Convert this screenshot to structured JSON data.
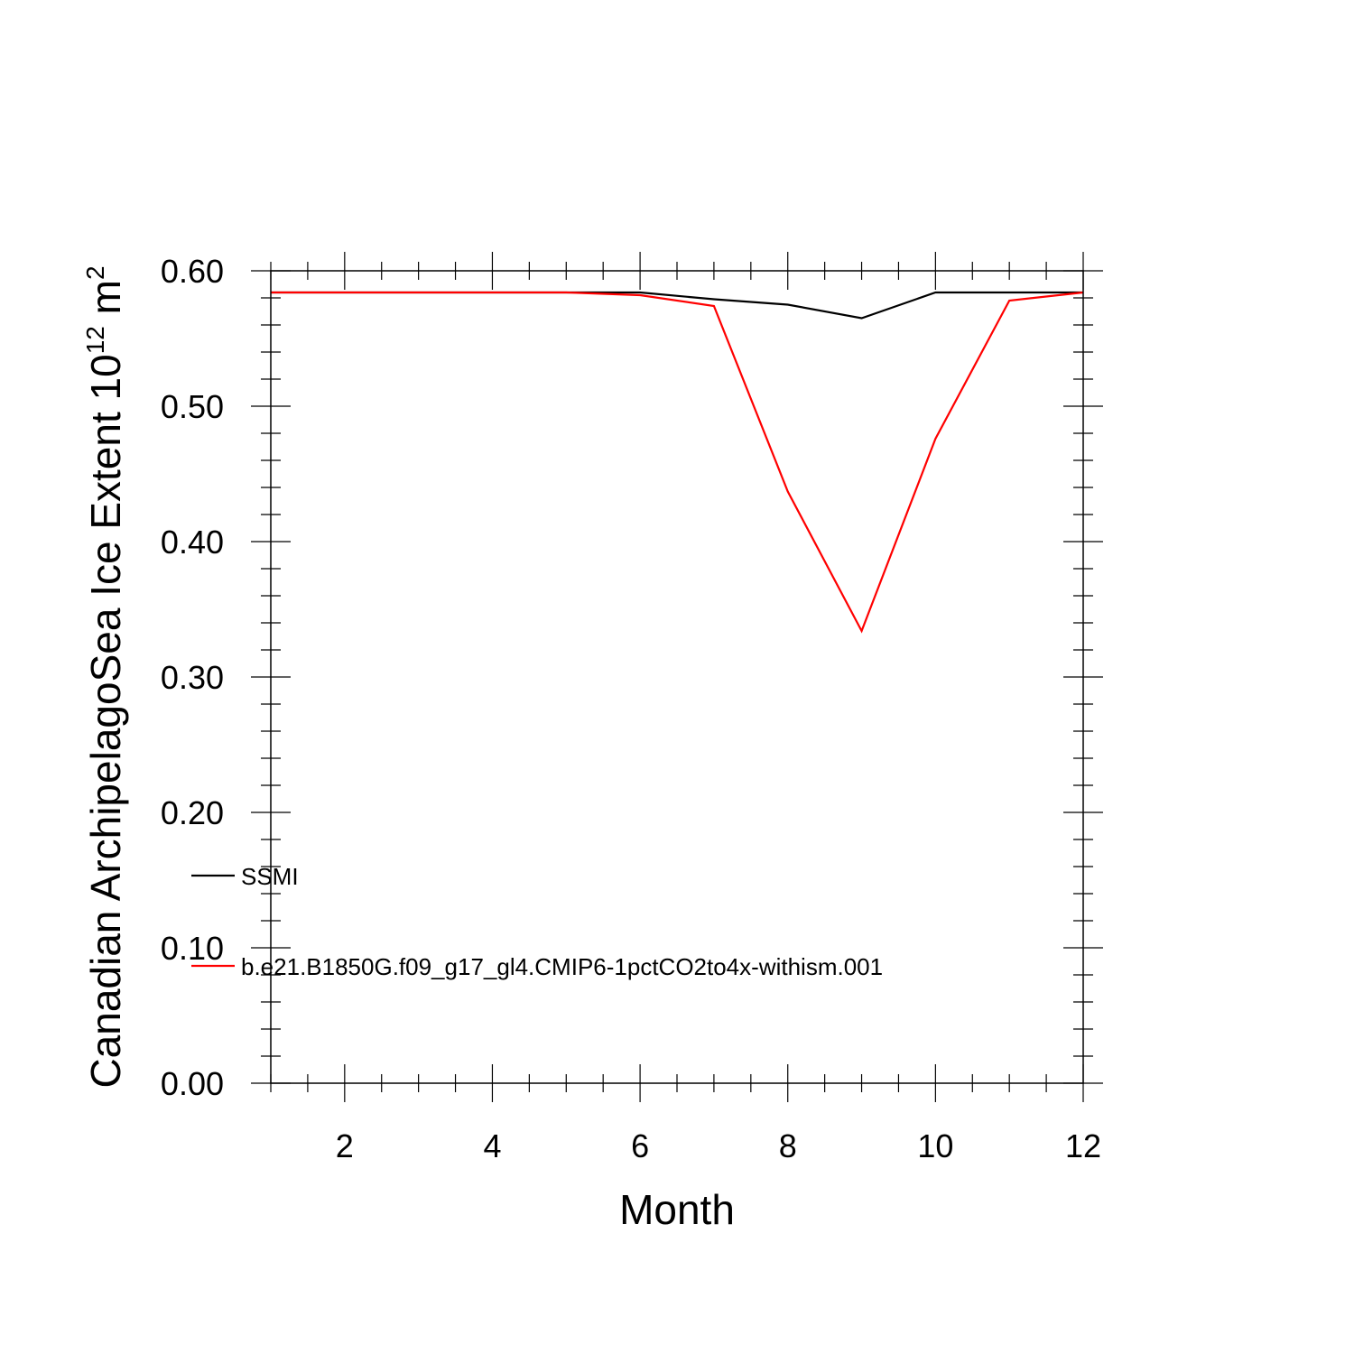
{
  "chart_data": {
    "type": "line",
    "title": "",
    "xlabel": "Month",
    "ylabel": {
      "prefix": "Canadian ArchipelagoSea Ice Extent 10",
      "exponent": "12",
      "unit": " m",
      "unit_exponent": "2"
    },
    "xlim": [
      1,
      12
    ],
    "ylim": [
      0,
      0.6
    ],
    "x_ticks": [
      2,
      4,
      6,
      8,
      10,
      12
    ],
    "x_tick_labels": [
      "2",
      "4",
      "6",
      "8",
      "10",
      "12"
    ],
    "y_ticks": [
      0,
      0.1,
      0.2,
      0.3,
      0.4,
      0.5,
      0.6
    ],
    "y_tick_labels": [
      "0.00",
      "0.10",
      "0.20",
      "0.30",
      "0.40",
      "0.50",
      "0.60"
    ],
    "grid": false,
    "legend_position": "lower-left",
    "x": [
      1,
      2,
      3,
      4,
      5,
      6,
      7,
      8,
      9,
      10,
      11,
      12
    ],
    "series": [
      {
        "name": "SSMI",
        "color": "#000000",
        "values": [
          0.584,
          0.584,
          0.584,
          0.584,
          0.584,
          0.584,
          0.579,
          0.575,
          0.565,
          0.584,
          0.584,
          0.584
        ]
      },
      {
        "name": "b.e21.B1850G.f09_g17_gl4.CMIP6-1pctCO2to4x-withism.001",
        "color": "#ff0000",
        "values": [
          0.584,
          0.584,
          0.584,
          0.584,
          0.584,
          0.582,
          0.574,
          0.437,
          0.334,
          0.476,
          0.578,
          0.584
        ]
      }
    ]
  }
}
